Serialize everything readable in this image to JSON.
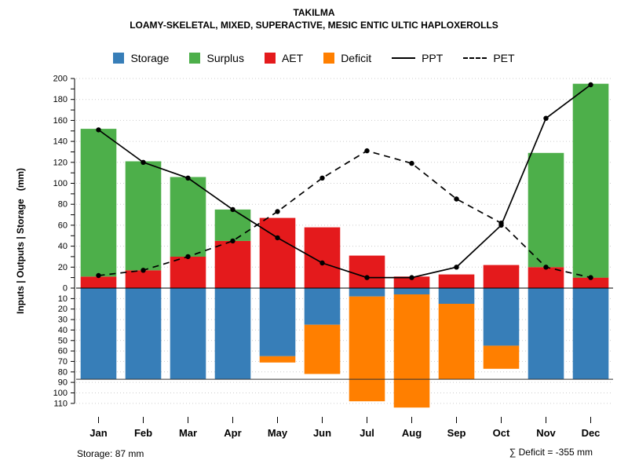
{
  "chart_data": {
    "type": "bar",
    "title": "TAKILMA",
    "subtitle": "LOAMY-SKELETAL, MIXED, SUPERACTIVE, MESIC ENTIC ULTIC HAPLOXEROLLS",
    "ylabel": "Inputs | Outputs | Storage   (mm)",
    "xlabel": "",
    "categories": [
      "Jan",
      "Feb",
      "Mar",
      "Apr",
      "May",
      "Jun",
      "Jul",
      "Aug",
      "Sep",
      "Oct",
      "Nov",
      "Dec"
    ],
    "ylim": [
      -110,
      200
    ],
    "grid": true,
    "legend_position": "top",
    "y_axis": {
      "up_max": 200,
      "up_label_step": 20,
      "down_max": 110,
      "down_label_step": 10,
      "tick_step": 10
    },
    "series": [
      {
        "name": "AET",
        "render": "bar-up",
        "color": "#E41A1C",
        "values": [
          11,
          17,
          30,
          45,
          67,
          58,
          31,
          11,
          13,
          22,
          20,
          10
        ]
      },
      {
        "name": "Surplus",
        "render": "bar-up-stacked",
        "color": "#4DAF4A",
        "values": [
          141,
          104,
          76,
          30,
          0,
          0,
          0,
          0,
          0,
          0,
          109,
          185
        ]
      },
      {
        "name": "Storage",
        "render": "bar-down",
        "color": "#377EB8",
        "values": [
          87,
          87,
          87,
          87,
          65,
          35,
          8,
          6,
          15,
          55,
          87,
          87
        ]
      },
      {
        "name": "Deficit",
        "render": "bar-down-stacked",
        "color": "#FF7F00",
        "values": [
          0,
          0,
          0,
          0,
          6,
          47,
          100,
          108,
          72,
          22,
          0,
          0
        ]
      },
      {
        "name": "PPT",
        "render": "line-solid",
        "color": "#000000",
        "values": [
          151,
          120,
          105,
          75,
          48,
          24,
          10,
          10,
          20,
          60,
          162,
          194
        ]
      },
      {
        "name": "PET",
        "render": "line-dashed",
        "color": "#000000",
        "values": [
          12,
          17,
          30,
          45,
          73,
          105,
          131,
          119,
          85,
          62,
          20,
          10
        ]
      }
    ],
    "reference_line": {
      "value": 87,
      "axis": "down"
    },
    "legend": [
      {
        "label": "Storage",
        "swatch": "box",
        "color": "#377EB8"
      },
      {
        "label": "Surplus",
        "swatch": "box",
        "color": "#4DAF4A"
      },
      {
        "label": "AET",
        "swatch": "box",
        "color": "#E41A1C"
      },
      {
        "label": "Deficit",
        "swatch": "box",
        "color": "#FF7F00"
      },
      {
        "label": "PPT",
        "swatch": "line-solid",
        "color": "#000000"
      },
      {
        "label": "PET",
        "swatch": "line-dashed",
        "color": "#000000"
      }
    ],
    "annotations": {
      "storage": "Storage: 87 mm",
      "deficit": "∑ Deficit = -355 mm"
    }
  }
}
